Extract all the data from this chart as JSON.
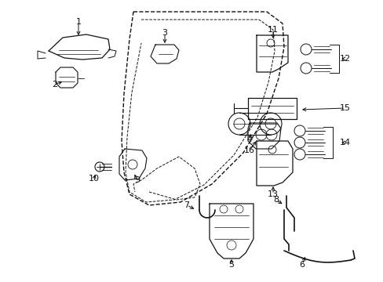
{
  "background_color": "#ffffff",
  "line_color": "#111111",
  "figure_width": 4.89,
  "figure_height": 3.6,
  "dpi": 100
}
